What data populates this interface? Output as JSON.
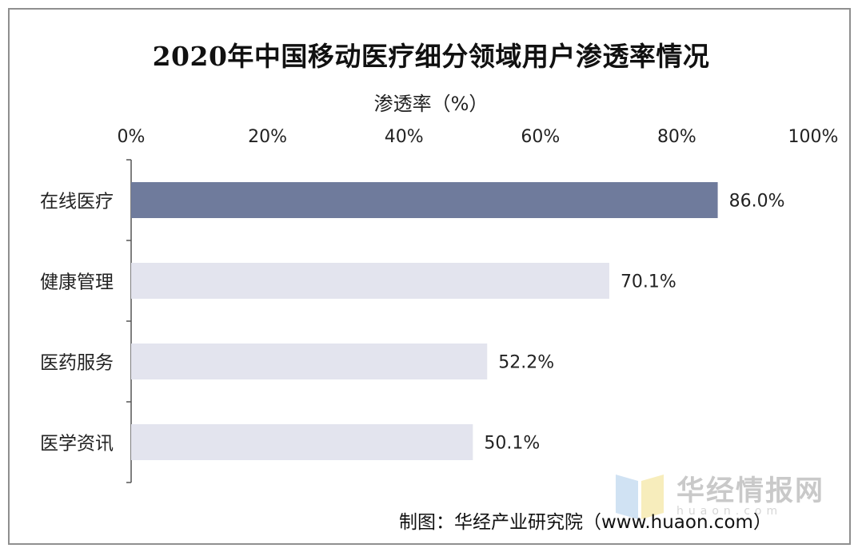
{
  "chart_data": {
    "type": "bar",
    "orientation": "horizontal",
    "title": "2020年中国移动医疗细分领域用户渗透率情况",
    "xlabel": "渗透率（%）",
    "ylabel": "",
    "xlim": [
      0,
      100
    ],
    "x_ticks": [
      "0%",
      "20%",
      "40%",
      "60%",
      "80%",
      "100%"
    ],
    "categories": [
      "在线医疗",
      "健康管理",
      "医药服务",
      "医学资讯"
    ],
    "values": [
      86.0,
      70.1,
      52.2,
      50.1
    ],
    "data_labels": [
      "86.0%",
      "70.1%",
      "52.2%",
      "50.1%"
    ],
    "highlight_index": 0,
    "colors": {
      "highlight": "#6f7b9c",
      "default": "#e3e4ee",
      "axis": "#555555"
    },
    "grid": false,
    "legend": "none"
  },
  "source": "制图：华经产业研究院（www.huaon.com）",
  "watermark": {
    "text": "华经情报网",
    "sub": "huaon.com"
  }
}
